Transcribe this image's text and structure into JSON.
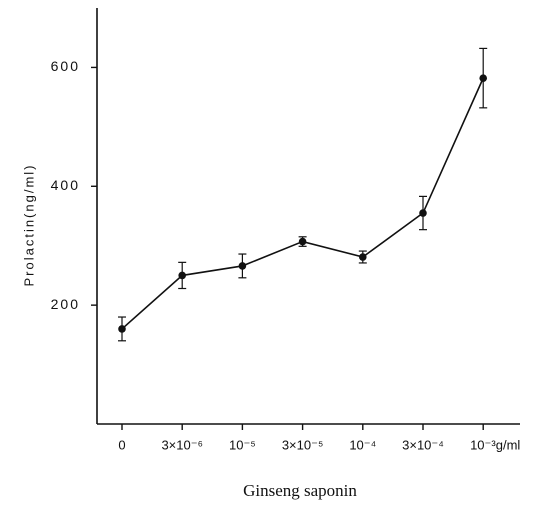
{
  "chart_data": {
    "type": "line",
    "y_label": "Prolactin(ng/ml)",
    "x_label": "Ginseng saponin",
    "categories": [
      "0",
      "3×10⁻⁶",
      "10⁻⁵",
      "3×10⁻⁵",
      "10⁻⁴",
      "3×10⁻⁴",
      "10⁻³g/ml"
    ],
    "values": [
      160,
      250,
      266,
      307,
      281,
      355,
      582
    ],
    "errors": [
      20,
      22,
      20,
      8,
      10,
      28,
      50
    ],
    "color": "#111111",
    "ylim": [
      0,
      700
    ],
    "yticks": [
      200,
      400,
      600
    ],
    "grid": false
  }
}
